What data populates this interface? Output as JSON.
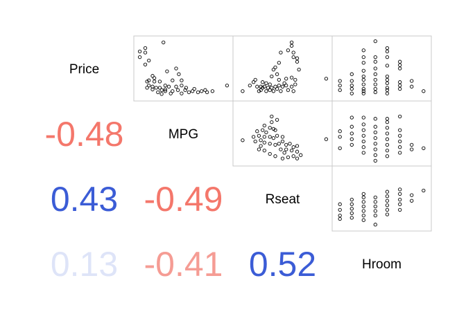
{
  "chart_data": {
    "type": "scatter",
    "title": "",
    "variables": [
      "Price",
      "MPG",
      "Rseat",
      "Hroom"
    ],
    "correlations": [
      {
        "row": "MPG",
        "col": "Price",
        "value": "-0.48",
        "r": -0.48,
        "color": "#F4776B"
      },
      {
        "row": "Rseat",
        "col": "Price",
        "value": "0.43",
        "r": 0.43,
        "color": "#3B5CD6"
      },
      {
        "row": "Rseat",
        "col": "MPG",
        "value": "-0.49",
        "r": -0.49,
        "color": "#F4776B"
      },
      {
        "row": "Hroom",
        "col": "Price",
        "value": "0.13",
        "r": 0.13,
        "color": "#DEE4F8"
      },
      {
        "row": "Hroom",
        "col": "MPG",
        "value": "-0.41",
        "r": -0.41,
        "color": "#F59C94"
      },
      {
        "row": "Hroom",
        "col": "Rseat",
        "value": "0.52",
        "r": 0.52,
        "color": "#3B5CD6"
      }
    ],
    "scatter_panels": [
      {
        "x": "MPG",
        "y": "Price",
        "xlim": [
          0,
          1
        ],
        "ylim": [
          0,
          1
        ],
        "points": [
          [
            0.28,
            0.96
          ],
          [
            0.08,
            0.86
          ],
          [
            0.02,
            0.8
          ],
          [
            0.08,
            0.78
          ],
          [
            0.02,
            0.7
          ],
          [
            0.12,
            0.64
          ],
          [
            0.08,
            0.57
          ],
          [
            0.42,
            0.5
          ],
          [
            0.45,
            0.4
          ],
          [
            0.32,
            0.45
          ],
          [
            0.16,
            0.37
          ],
          [
            0.12,
            0.29
          ],
          [
            0.18,
            0.33
          ],
          [
            0.1,
            0.27
          ],
          [
            0.18,
            0.27
          ],
          [
            0.24,
            0.27
          ],
          [
            0.38,
            0.29
          ],
          [
            0.48,
            0.29
          ],
          [
            0.12,
            0.2
          ],
          [
            0.16,
            0.18
          ],
          [
            0.2,
            0.16
          ],
          [
            0.24,
            0.16
          ],
          [
            0.3,
            0.2
          ],
          [
            0.34,
            0.18
          ],
          [
            0.42,
            0.18
          ],
          [
            0.48,
            0.2
          ],
          [
            0.53,
            0.16
          ],
          [
            0.26,
            0.12
          ],
          [
            0.3,
            0.1
          ],
          [
            0.22,
            0.08
          ],
          [
            0.16,
            0.13
          ],
          [
            0.1,
            0.16
          ],
          [
            0.38,
            0.1
          ],
          [
            0.44,
            0.12
          ],
          [
            0.52,
            0.12
          ],
          [
            0.6,
            0.1
          ],
          [
            0.62,
            0.14
          ],
          [
            0.66,
            0.08
          ],
          [
            0.7,
            0.1
          ],
          [
            0.74,
            0.12
          ],
          [
            0.76,
            0.08
          ],
          [
            0.82,
            0.1
          ],
          [
            0.98,
            0.2
          ],
          [
            0.56,
            0.08
          ],
          [
            0.48,
            0.06
          ],
          [
            0.36,
            0.06
          ],
          [
            0.26,
            0.05
          ],
          [
            0.3,
            0.13
          ]
        ]
      },
      {
        "x": "Rseat",
        "y": "Price",
        "xlim": [
          0,
          1
        ],
        "ylim": [
          0,
          1
        ],
        "points": [
          [
            0.6,
            0.96
          ],
          [
            0.6,
            0.9
          ],
          [
            0.56,
            0.82
          ],
          [
            0.62,
            0.78
          ],
          [
            0.48,
            0.78
          ],
          [
            0.46,
            0.6
          ],
          [
            0.66,
            0.68
          ],
          [
            0.62,
            0.7
          ],
          [
            0.66,
            0.62
          ],
          [
            0.68,
            0.48
          ],
          [
            0.42,
            0.52
          ],
          [
            0.44,
            0.4
          ],
          [
            0.4,
            0.48
          ],
          [
            0.38,
            0.36
          ],
          [
            0.46,
            0.3
          ],
          [
            0.54,
            0.32
          ],
          [
            0.6,
            0.34
          ],
          [
            0.64,
            0.3
          ],
          [
            0.18,
            0.26
          ],
          [
            0.2,
            0.3
          ],
          [
            0.28,
            0.26
          ],
          [
            0.32,
            0.24
          ],
          [
            0.36,
            0.22
          ],
          [
            0.22,
            0.18
          ],
          [
            0.26,
            0.18
          ],
          [
            0.3,
            0.18
          ],
          [
            0.34,
            0.16
          ],
          [
            0.38,
            0.16
          ],
          [
            0.42,
            0.18
          ],
          [
            0.46,
            0.2
          ],
          [
            0.5,
            0.18
          ],
          [
            0.54,
            0.2
          ],
          [
            0.6,
            0.18
          ],
          [
            0.64,
            0.22
          ],
          [
            0.44,
            0.14
          ],
          [
            0.4,
            0.1
          ],
          [
            0.32,
            0.1
          ],
          [
            0.26,
            0.12
          ],
          [
            0.14,
            0.2
          ],
          [
            0.06,
            0.1
          ],
          [
            0.48,
            0.1
          ],
          [
            0.56,
            0.12
          ],
          [
            0.62,
            0.1
          ],
          [
            0.36,
            0.12
          ],
          [
            0.28,
            0.16
          ],
          [
            0.98,
            0.32
          ],
          [
            0.24,
            0.1
          ],
          [
            0.52,
            0.24
          ]
        ]
      },
      {
        "x": "Hroom",
        "y": "Price",
        "xlim": [
          0,
          1
        ],
        "ylim": [
          0,
          1
        ],
        "points": [
          [
            0.43,
            0.98
          ],
          [
            0.56,
            0.86
          ],
          [
            0.3,
            0.82
          ],
          [
            0.56,
            0.8
          ],
          [
            0.3,
            0.7
          ],
          [
            0.56,
            0.7
          ],
          [
            0.7,
            0.62
          ],
          [
            0.7,
            0.5
          ],
          [
            0.43,
            0.62
          ],
          [
            0.3,
            0.6
          ],
          [
            0.43,
            0.5
          ],
          [
            0.56,
            0.55
          ],
          [
            0.3,
            0.46
          ],
          [
            0.43,
            0.4
          ],
          [
            0.17,
            0.4
          ],
          [
            0.3,
            0.36
          ],
          [
            0.43,
            0.3
          ],
          [
            0.56,
            0.3
          ],
          [
            0.7,
            0.26
          ],
          [
            0.83,
            0.28
          ],
          [
            0.04,
            0.28
          ],
          [
            0.04,
            0.2
          ],
          [
            0.17,
            0.28
          ],
          [
            0.17,
            0.2
          ],
          [
            0.3,
            0.22
          ],
          [
            0.43,
            0.22
          ],
          [
            0.56,
            0.24
          ],
          [
            0.7,
            0.2
          ],
          [
            0.83,
            0.18
          ],
          [
            0.96,
            0.1
          ],
          [
            0.04,
            0.12
          ],
          [
            0.17,
            0.14
          ],
          [
            0.3,
            0.14
          ],
          [
            0.43,
            0.14
          ],
          [
            0.56,
            0.12
          ],
          [
            0.7,
            0.14
          ],
          [
            0.17,
            0.06
          ],
          [
            0.3,
            0.06
          ],
          [
            0.43,
            0.08
          ],
          [
            0.56,
            0.06
          ],
          [
            0.3,
            0.3
          ],
          [
            0.56,
            0.36
          ],
          [
            0.7,
            0.56
          ],
          [
            0.43,
            0.7
          ],
          [
            0.56,
            0.16
          ],
          [
            0.3,
            0.1
          ]
        ]
      },
      {
        "x": "Hroom",
        "y": "MPG",
        "xlim": [
          0,
          1
        ],
        "ylim": [
          0,
          1
        ],
        "points": [
          [
            0.17,
            0.78
          ],
          [
            0.3,
            0.78
          ],
          [
            0.43,
            0.76
          ],
          [
            0.56,
            0.76
          ],
          [
            0.7,
            0.8
          ],
          [
            0.04,
            0.54
          ],
          [
            0.04,
            0.44
          ],
          [
            0.04,
            0.24
          ],
          [
            0.17,
            0.62
          ],
          [
            0.17,
            0.5
          ],
          [
            0.17,
            0.4
          ],
          [
            0.17,
            0.3
          ],
          [
            0.3,
            0.66
          ],
          [
            0.3,
            0.56
          ],
          [
            0.3,
            0.46
          ],
          [
            0.3,
            0.36
          ],
          [
            0.3,
            0.26
          ],
          [
            0.43,
            0.62
          ],
          [
            0.43,
            0.52
          ],
          [
            0.43,
            0.42
          ],
          [
            0.43,
            0.32
          ],
          [
            0.43,
            0.22
          ],
          [
            0.43,
            0.12
          ],
          [
            0.43,
            0.02
          ],
          [
            0.56,
            0.6
          ],
          [
            0.56,
            0.5
          ],
          [
            0.56,
            0.4
          ],
          [
            0.56,
            0.3
          ],
          [
            0.56,
            0.2
          ],
          [
            0.56,
            0.1
          ],
          [
            0.7,
            0.56
          ],
          [
            0.7,
            0.46
          ],
          [
            0.7,
            0.36
          ],
          [
            0.7,
            0.26
          ],
          [
            0.7,
            0.16
          ],
          [
            0.83,
            0.3
          ],
          [
            0.83,
            0.22
          ],
          [
            0.96,
            0.24
          ],
          [
            0.56,
            0.7
          ],
          [
            0.3,
            0.16
          ]
        ]
      },
      {
        "x": "Rseat",
        "y": "MPG",
        "xlim": [
          0,
          1
        ],
        "ylim": [
          0,
          1
        ],
        "points": [
          [
            0.38,
            0.8
          ],
          [
            0.38,
            0.7
          ],
          [
            0.44,
            0.74
          ],
          [
            0.3,
            0.64
          ],
          [
            0.36,
            0.6
          ],
          [
            0.4,
            0.58
          ],
          [
            0.28,
            0.56
          ],
          [
            0.22,
            0.54
          ],
          [
            0.32,
            0.52
          ],
          [
            0.42,
            0.56
          ],
          [
            0.18,
            0.44
          ],
          [
            0.24,
            0.46
          ],
          [
            0.3,
            0.44
          ],
          [
            0.36,
            0.44
          ],
          [
            0.4,
            0.42
          ],
          [
            0.44,
            0.46
          ],
          [
            0.5,
            0.44
          ],
          [
            0.2,
            0.36
          ],
          [
            0.26,
            0.38
          ],
          [
            0.3,
            0.34
          ],
          [
            0.36,
            0.32
          ],
          [
            0.42,
            0.3
          ],
          [
            0.46,
            0.32
          ],
          [
            0.5,
            0.36
          ],
          [
            0.54,
            0.3
          ],
          [
            0.58,
            0.32
          ],
          [
            0.62,
            0.26
          ],
          [
            0.66,
            0.28
          ],
          [
            0.54,
            0.22
          ],
          [
            0.6,
            0.2
          ],
          [
            0.66,
            0.18
          ],
          [
            0.7,
            0.12
          ],
          [
            0.62,
            0.1
          ],
          [
            0.56,
            0.08
          ],
          [
            0.5,
            0.06
          ],
          [
            0.42,
            0.1
          ],
          [
            0.36,
            0.14
          ],
          [
            0.3,
            0.2
          ],
          [
            0.24,
            0.22
          ],
          [
            0.06,
            0.38
          ],
          [
            0.98,
            0.4
          ],
          [
            0.48,
            0.22
          ],
          [
            0.52,
            0.16
          ],
          [
            0.66,
            0.06
          ],
          [
            0.26,
            0.28
          ]
        ]
      },
      {
        "x": "Hroom",
        "y": "Rseat",
        "xlim": [
          0,
          1
        ],
        "ylim": [
          0,
          1
        ],
        "points": [
          [
            0.96,
            0.64
          ],
          [
            0.83,
            0.56
          ],
          [
            0.83,
            0.46
          ],
          [
            0.7,
            0.66
          ],
          [
            0.7,
            0.58
          ],
          [
            0.7,
            0.48
          ],
          [
            0.7,
            0.4
          ],
          [
            0.56,
            0.62
          ],
          [
            0.56,
            0.54
          ],
          [
            0.56,
            0.46
          ],
          [
            0.56,
            0.38
          ],
          [
            0.56,
            0.3
          ],
          [
            0.43,
            0.52
          ],
          [
            0.43,
            0.44
          ],
          [
            0.43,
            0.36
          ],
          [
            0.43,
            0.28
          ],
          [
            0.43,
            0.04
          ],
          [
            0.3,
            0.52
          ],
          [
            0.3,
            0.44
          ],
          [
            0.3,
            0.36
          ],
          [
            0.3,
            0.28
          ],
          [
            0.3,
            0.2
          ],
          [
            0.3,
            0.12
          ],
          [
            0.17,
            0.4
          ],
          [
            0.17,
            0.32
          ],
          [
            0.17,
            0.24
          ],
          [
            0.17,
            0.16
          ],
          [
            0.04,
            0.4
          ],
          [
            0.04,
            0.3
          ],
          [
            0.04,
            0.2
          ],
          [
            0.04,
            0.14
          ],
          [
            0.56,
            0.22
          ],
          [
            0.7,
            0.3
          ],
          [
            0.43,
            0.2
          ],
          [
            0.3,
            0.58
          ],
          [
            0.17,
            0.48
          ]
        ]
      }
    ]
  }
}
